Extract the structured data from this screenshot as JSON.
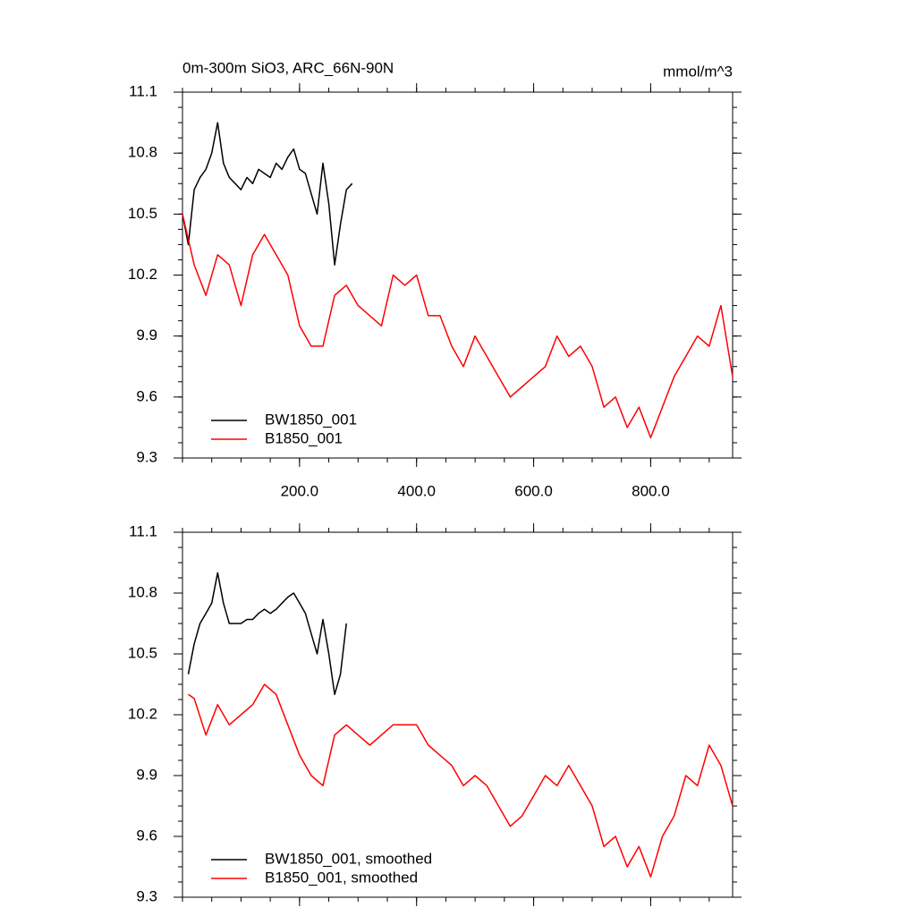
{
  "chart_data": [
    {
      "type": "line",
      "title": "0m-300m SiO3, ARC_66N-90N",
      "units": "mmol/m^3",
      "xlim": [
        0,
        940
      ],
      "ylim": [
        9.3,
        11.1
      ],
      "xticks": [
        {
          "value": 200,
          "label": "200.0"
        },
        {
          "value": 400,
          "label": "400.0"
        },
        {
          "value": 600,
          "label": "600.0"
        },
        {
          "value": 800,
          "label": "800.0"
        }
      ],
      "yticks": [
        9.3,
        9.6,
        9.9,
        10.2,
        10.5,
        10.8,
        11.1
      ],
      "xtick_labels": true,
      "legend": "lower-left",
      "series": [
        {
          "name": "BW1850_001",
          "color": "#000000",
          "x": [
            0,
            10,
            20,
            30,
            40,
            50,
            60,
            70,
            80,
            90,
            100,
            110,
            120,
            130,
            140,
            150,
            160,
            170,
            180,
            190,
            200,
            210,
            220,
            230,
            240,
            250,
            260,
            270,
            280,
            290
          ],
          "values": [
            10.5,
            10.35,
            10.62,
            10.68,
            10.72,
            10.8,
            10.95,
            10.75,
            10.68,
            10.65,
            10.62,
            10.68,
            10.65,
            10.72,
            10.7,
            10.68,
            10.75,
            10.72,
            10.78,
            10.82,
            10.72,
            10.7,
            10.6,
            10.5,
            10.75,
            10.55,
            10.25,
            10.45,
            10.62,
            10.65
          ]
        },
        {
          "name": "B1850_001",
          "color": "#ff0000",
          "x": [
            0,
            20,
            40,
            60,
            80,
            100,
            120,
            140,
            160,
            180,
            200,
            220,
            240,
            260,
            280,
            300,
            320,
            340,
            360,
            380,
            400,
            420,
            440,
            460,
            480,
            500,
            520,
            540,
            560,
            580,
            600,
            620,
            640,
            660,
            680,
            700,
            720,
            740,
            760,
            780,
            800,
            820,
            840,
            860,
            880,
            900,
            920,
            940
          ],
          "values": [
            10.5,
            10.25,
            10.1,
            10.3,
            10.25,
            10.05,
            10.3,
            10.4,
            10.3,
            10.2,
            9.95,
            9.85,
            9.85,
            10.1,
            10.15,
            10.05,
            10.0,
            9.95,
            10.2,
            10.15,
            10.2,
            10.0,
            10.0,
            9.85,
            9.75,
            9.9,
            9.8,
            9.7,
            9.6,
            9.65,
            9.7,
            9.75,
            9.9,
            9.8,
            9.85,
            9.75,
            9.55,
            9.6,
            9.45,
            9.55,
            9.4,
            9.55,
            9.7,
            9.8,
            9.9,
            9.85,
            10.05,
            9.7
          ]
        }
      ]
    },
    {
      "type": "line",
      "xlim": [
        0,
        940
      ],
      "ylim": [
        9.3,
        11.1
      ],
      "xticks": [
        200,
        400,
        600,
        800
      ],
      "yticks": [
        9.3,
        9.6,
        9.9,
        10.2,
        10.5,
        10.8,
        11.1
      ],
      "xtick_labels": false,
      "legend": "lower-left",
      "series": [
        {
          "name": "BW1850_001, smoothed",
          "color": "#000000",
          "x": [
            10,
            20,
            30,
            40,
            50,
            60,
            70,
            80,
            90,
            100,
            110,
            120,
            130,
            140,
            150,
            160,
            170,
            180,
            190,
            200,
            210,
            220,
            230,
            240,
            250,
            260,
            270,
            280
          ],
          "values": [
            10.4,
            10.55,
            10.65,
            10.7,
            10.75,
            10.9,
            10.75,
            10.65,
            10.65,
            10.65,
            10.67,
            10.67,
            10.7,
            10.72,
            10.7,
            10.72,
            10.75,
            10.78,
            10.8,
            10.75,
            10.7,
            10.6,
            10.5,
            10.67,
            10.5,
            10.3,
            10.4,
            10.65
          ]
        },
        {
          "name": "B1850_001, smoothed",
          "color": "#ff0000",
          "x": [
            10,
            20,
            40,
            60,
            80,
            100,
            120,
            140,
            160,
            180,
            200,
            220,
            240,
            260,
            280,
            300,
            320,
            340,
            360,
            380,
            400,
            420,
            440,
            460,
            480,
            500,
            520,
            540,
            560,
            580,
            600,
            620,
            640,
            660,
            680,
            700,
            720,
            740,
            760,
            780,
            800,
            820,
            840,
            860,
            880,
            900,
            920,
            940
          ],
          "values": [
            10.3,
            10.28,
            10.1,
            10.25,
            10.15,
            10.2,
            10.25,
            10.35,
            10.3,
            10.15,
            10.0,
            9.9,
            9.85,
            10.1,
            10.15,
            10.1,
            10.05,
            10.1,
            10.15,
            10.15,
            10.15,
            10.05,
            10.0,
            9.95,
            9.85,
            9.9,
            9.85,
            9.75,
            9.65,
            9.7,
            9.8,
            9.9,
            9.85,
            9.95,
            9.85,
            9.75,
            9.55,
            9.6,
            9.45,
            9.55,
            9.4,
            9.6,
            9.7,
            9.9,
            9.85,
            10.05,
            9.95,
            9.75
          ]
        }
      ]
    }
  ]
}
